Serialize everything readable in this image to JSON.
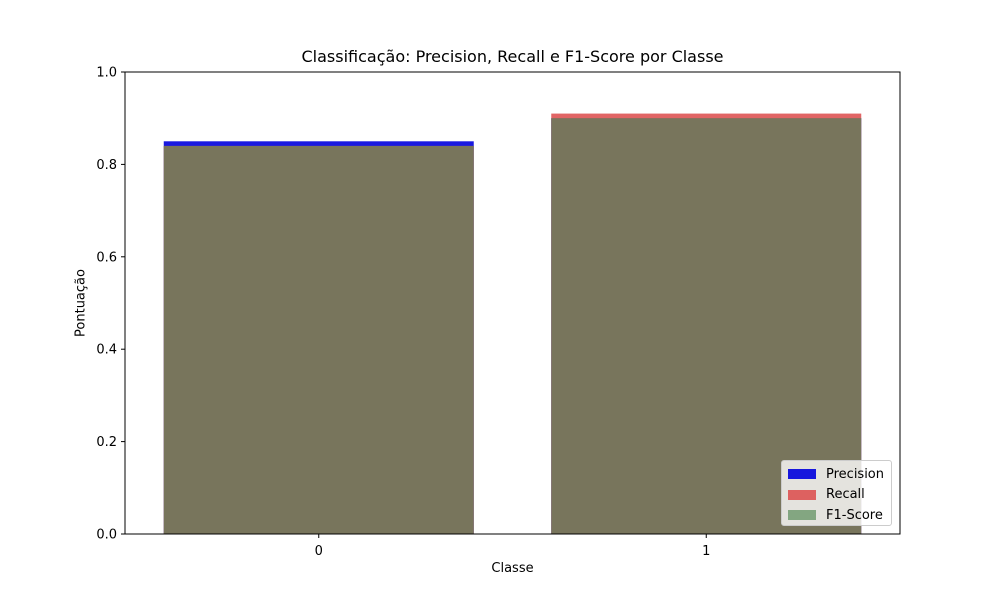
{
  "chart_data": {
    "type": "bar",
    "title": "Classificação: Precision, Recall e F1-Score por Classe",
    "xlabel": "Classe",
    "ylabel": "Pontuação",
    "categories": [
      "0",
      "1"
    ],
    "ylim": [
      0.0,
      1.0
    ],
    "y_ticks": [
      "0.0",
      "0.2",
      "0.4",
      "0.6",
      "0.8",
      "1.0"
    ],
    "grid": false,
    "legend_position": "lower-right",
    "bar_mode": "overlaid",
    "series": [
      {
        "name": "Precision",
        "values": [
          0.85,
          0.9
        ],
        "color": "#0000dd",
        "opacity": 0.9
      },
      {
        "name": "Recall",
        "values": [
          0.84,
          0.91
        ],
        "color": "#dc4a4a",
        "opacity": 0.85
      },
      {
        "name": "F1-Score",
        "values": [
          0.84,
          0.9
        ],
        "color": "#5a8c5a",
        "opacity": 0.7
      }
    ]
  }
}
